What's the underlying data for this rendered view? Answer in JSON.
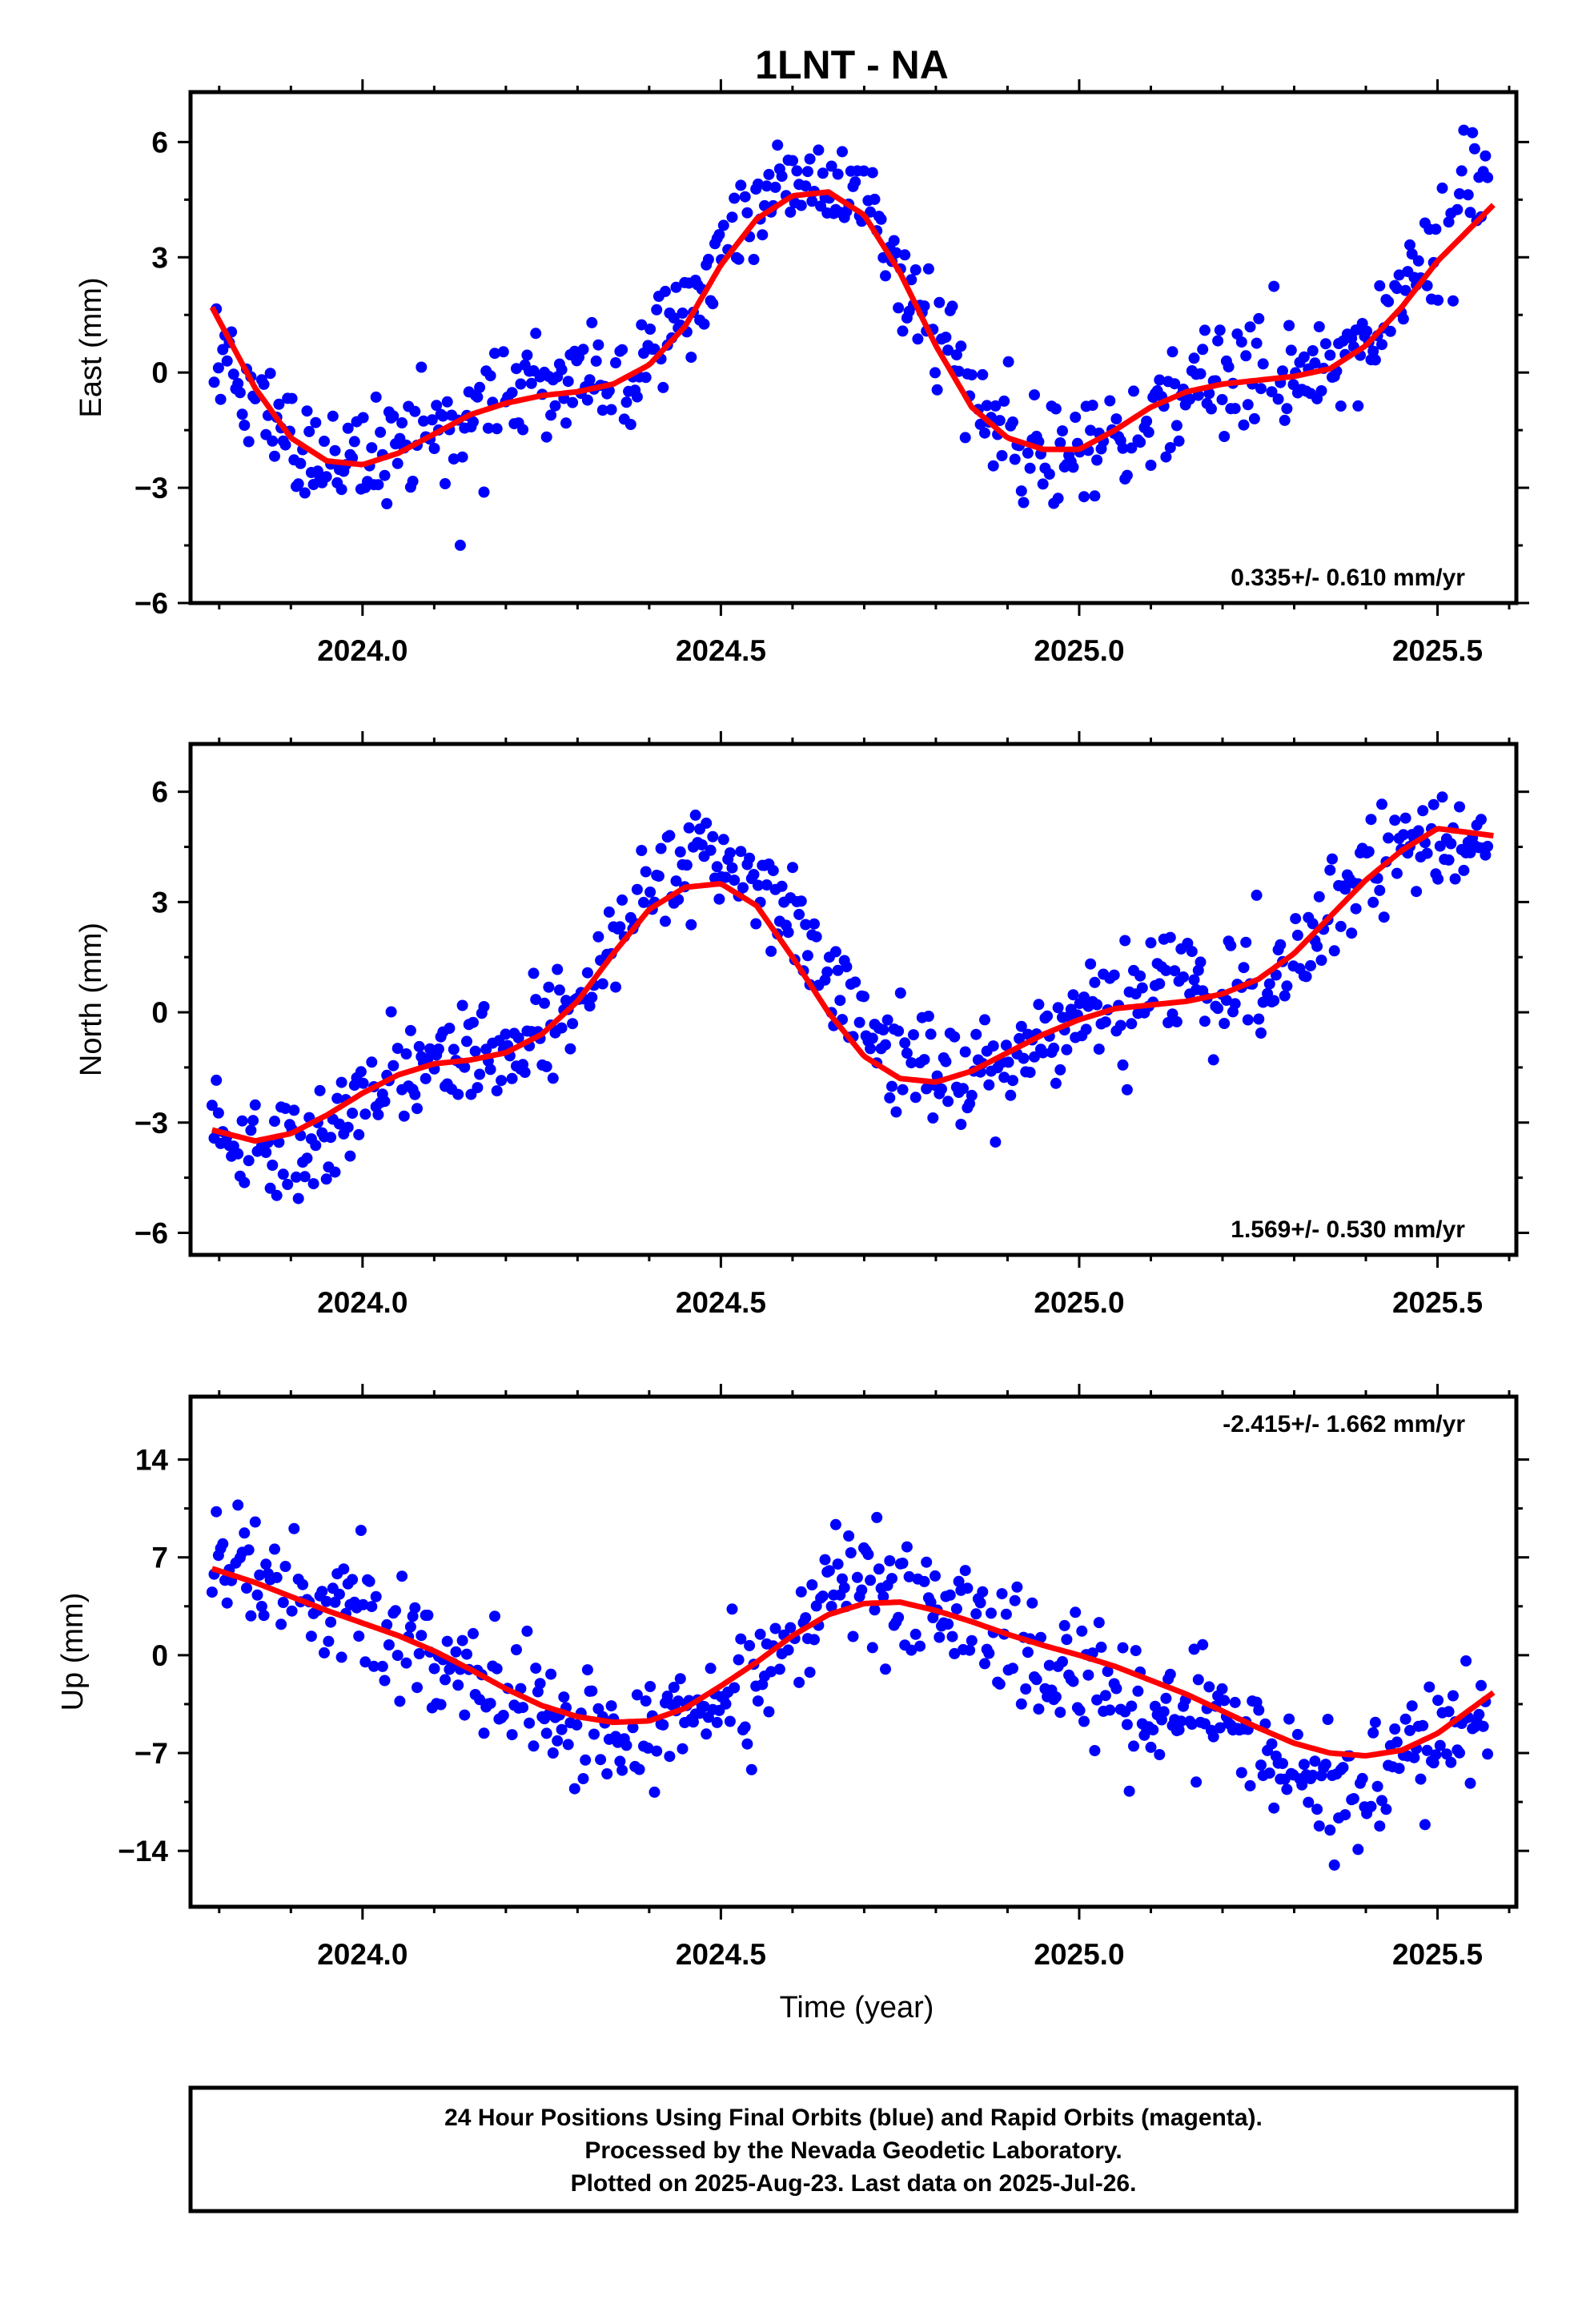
{
  "chart_data": [
    {
      "type": "scatter",
      "title": "1LNT - NA",
      "ylabel": "East (mm)",
      "xlabel": "",
      "xlim": [
        2023.76,
        2025.61
      ],
      "ylim": [
        -6.0,
        7.3
      ],
      "xticks": [
        2024.0,
        2024.5,
        2025.0,
        2025.5
      ],
      "xtick_labels": [
        "2024.0",
        "2024.5",
        "2025.0",
        "2025.5"
      ],
      "yticks": [
        6,
        3,
        0,
        -3,
        -6
      ],
      "ytick_labels": [
        "6",
        "3",
        "0",
        "−3",
        "−6"
      ],
      "rate_text": "0.335+/- 0.610 mm/yr",
      "rate_position": "bottom-right",
      "series": [
        {
          "name": "Final Orbits (blue)",
          "color": "#0000ff",
          "x": [
            2023.8,
            2023.85,
            2023.9,
            2023.95,
            2024.0,
            2024.05,
            2024.1,
            2024.15,
            2024.2,
            2024.25,
            2024.3,
            2024.35,
            2024.4,
            2024.45,
            2024.5,
            2024.55,
            2024.6,
            2024.65,
            2024.7,
            2024.75,
            2024.8,
            2024.85,
            2024.9,
            2024.95,
            2025.0,
            2025.05,
            2025.1,
            2025.15,
            2025.2,
            2025.25,
            2025.3,
            2025.35,
            2025.4,
            2025.45,
            2025.5,
            2025.55
          ],
          "y": [
            0.4,
            -1.0,
            -2.1,
            -2.3,
            -2.6,
            -2.0,
            -1.5,
            -0.9,
            -0.6,
            -0.4,
            -0.3,
            -0.2,
            0.4,
            1.5,
            3.2,
            4.2,
            5.1,
            4.8,
            4.3,
            2.8,
            0.9,
            -0.7,
            -1.6,
            -2.2,
            -2.1,
            -1.8,
            -1.2,
            -0.6,
            -0.3,
            -0.2,
            -0.1,
            0.2,
            0.8,
            2.2,
            3.4,
            5.0
          ]
        },
        {
          "name": "Rapid Orbits (magenta)",
          "color": "#ff00ff",
          "x": [],
          "y": []
        },
        {
          "name": "",
          "color": "#ff0000",
          "x": [
            2023.79,
            2023.85,
            2023.9,
            2023.95,
            2024.0,
            2024.05,
            2024.1,
            2024.15,
            2024.2,
            2024.25,
            2024.3,
            2024.35,
            2024.4,
            2024.45,
            2024.5,
            2024.55,
            2024.6,
            2024.65,
            2024.7,
            2024.75,
            2024.8,
            2024.85,
            2024.9,
            2024.95,
            2025.0,
            2025.05,
            2025.1,
            2025.15,
            2025.2,
            2025.25,
            2025.3,
            2025.35,
            2025.4,
            2025.45,
            2025.5,
            2025.58
          ],
          "y": [
            1.7,
            -0.4,
            -1.7,
            -2.3,
            -2.4,
            -2.1,
            -1.6,
            -1.1,
            -0.8,
            -0.6,
            -0.5,
            -0.3,
            0.2,
            1.2,
            2.8,
            4.0,
            4.6,
            4.7,
            4.1,
            2.6,
            0.7,
            -0.9,
            -1.7,
            -2.0,
            -2.0,
            -1.5,
            -0.9,
            -0.5,
            -0.3,
            -0.2,
            -0.1,
            0.1,
            0.7,
            1.7,
            2.9,
            4.4
          ]
        }
      ]
    },
    {
      "type": "scatter",
      "title": "",
      "ylabel": "North (mm)",
      "xlabel": "",
      "xlim": [
        2023.76,
        2025.61
      ],
      "ylim": [
        -6.6,
        7.3
      ],
      "xticks": [
        2024.0,
        2024.5,
        2025.0,
        2025.5
      ],
      "xtick_labels": [
        "2024.0",
        "2024.5",
        "2025.0",
        "2025.5"
      ],
      "yticks": [
        6,
        3,
        0,
        -3,
        -6
      ],
      "ytick_labels": [
        "6",
        "3",
        "0",
        "−3",
        "−6"
      ],
      "rate_text": "1.569+/- 0.530 mm/yr",
      "rate_position": "bottom-right",
      "series": [
        {
          "name": "Final Orbits (blue)",
          "color": "#0000ff",
          "x": [
            2023.8,
            2023.85,
            2023.9,
            2023.95,
            2024.0,
            2024.05,
            2024.1,
            2024.15,
            2024.2,
            2024.25,
            2024.3,
            2024.35,
            2024.4,
            2024.45,
            2024.5,
            2024.55,
            2024.6,
            2024.65,
            2024.7,
            2024.75,
            2024.8,
            2024.85,
            2024.9,
            2024.95,
            2025.0,
            2025.05,
            2025.1,
            2025.15,
            2025.2,
            2025.25,
            2025.3,
            2025.35,
            2025.4,
            2025.45,
            2025.5,
            2025.55
          ],
          "y": [
            -3.2,
            -3.6,
            -3.8,
            -3.4,
            -2.4,
            -1.7,
            -1.5,
            -1.3,
            -1.1,
            -0.7,
            0.4,
            1.8,
            3.5,
            4.0,
            4.3,
            3.7,
            2.6,
            1.0,
            -0.5,
            -1.0,
            -1.6,
            -2.0,
            -1.5,
            -0.8,
            -0.3,
            0.3,
            0.6,
            0.5,
            0.4,
            0.6,
            1.5,
            2.4,
            3.7,
            4.6,
            4.9,
            4.2
          ]
        },
        {
          "name": "Rapid Orbits (magenta)",
          "color": "#ff00ff",
          "x": [],
          "y": []
        },
        {
          "name": "",
          "color": "#ff0000",
          "x": [
            2023.79,
            2023.85,
            2023.9,
            2023.95,
            2024.0,
            2024.05,
            2024.1,
            2024.15,
            2024.2,
            2024.25,
            2024.3,
            2024.35,
            2024.4,
            2024.45,
            2024.5,
            2024.55,
            2024.6,
            2024.65,
            2024.7,
            2024.75,
            2024.8,
            2024.85,
            2024.9,
            2024.95,
            2025.0,
            2025.05,
            2025.1,
            2025.15,
            2025.2,
            2025.25,
            2025.3,
            2025.35,
            2025.4,
            2025.45,
            2025.5,
            2025.58
          ],
          "y": [
            -3.2,
            -3.5,
            -3.3,
            -2.8,
            -2.2,
            -1.7,
            -1.4,
            -1.3,
            -1.1,
            -0.6,
            0.3,
            1.6,
            2.8,
            3.4,
            3.5,
            2.9,
            1.5,
            0.0,
            -1.2,
            -1.8,
            -1.9,
            -1.6,
            -1.1,
            -0.6,
            -0.2,
            0.1,
            0.2,
            0.3,
            0.5,
            0.9,
            1.6,
            2.6,
            3.6,
            4.4,
            5.0,
            4.8
          ]
        }
      ]
    },
    {
      "type": "scatter",
      "title": "",
      "ylabel": "Up (mm)",
      "xlabel": "Time (year)",
      "xlim": [
        2023.76,
        2025.61
      ],
      "ylim": [
        -18.0,
        18.5
      ],
      "xticks": [
        2024.0,
        2024.5,
        2025.0,
        2025.5
      ],
      "xtick_labels": [
        "2024.0",
        "2024.5",
        "2025.0",
        "2025.5"
      ],
      "yticks": [
        14,
        7,
        0,
        -7,
        -14
      ],
      "ytick_labels": [
        "14",
        "7",
        "0",
        "−7",
        "−14"
      ],
      "rate_text": "-2.415+/- 1.662 mm/yr",
      "rate_position": "top-right",
      "series": [
        {
          "name": "Final Orbits (blue)",
          "color": "#0000ff",
          "x": [
            2023.8,
            2023.85,
            2023.9,
            2023.95,
            2024.0,
            2024.05,
            2024.1,
            2024.15,
            2024.2,
            2024.25,
            2024.3,
            2024.35,
            2024.4,
            2024.45,
            2024.5,
            2024.55,
            2024.6,
            2024.65,
            2024.7,
            2024.75,
            2024.8,
            2024.85,
            2024.9,
            2024.95,
            2025.0,
            2025.05,
            2025.1,
            2025.15,
            2025.2,
            2025.25,
            2025.3,
            2025.35,
            2025.4,
            2025.45,
            2025.5,
            2025.55
          ],
          "y": [
            7.5,
            5.6,
            4.8,
            3.4,
            2.6,
            1.3,
            -0.2,
            -1.5,
            -3.0,
            -4.2,
            -5.5,
            -6.1,
            -5.8,
            -4.4,
            -2.8,
            -0.6,
            1.4,
            4.2,
            5.0,
            4.1,
            3.2,
            2.0,
            0.8,
            -0.1,
            -0.8,
            -1.8,
            -3.1,
            -4.2,
            -5.4,
            -6.5,
            -8.6,
            -9.8,
            -9.0,
            -7.4,
            -6.2,
            -4.3
          ]
        },
        {
          "name": "Rapid Orbits (magenta)",
          "color": "#ff00ff",
          "x": [],
          "y": []
        },
        {
          "name": "",
          "color": "#ff0000",
          "x": [
            2023.79,
            2023.85,
            2023.9,
            2023.95,
            2024.0,
            2024.05,
            2024.1,
            2024.15,
            2024.2,
            2024.25,
            2024.3,
            2024.35,
            2024.4,
            2024.45,
            2024.5,
            2024.55,
            2024.6,
            2024.65,
            2024.7,
            2024.75,
            2024.8,
            2024.85,
            2024.9,
            2024.95,
            2025.0,
            2025.05,
            2025.1,
            2025.15,
            2025.2,
            2025.25,
            2025.3,
            2025.35,
            2025.4,
            2025.45,
            2025.5,
            2025.58
          ],
          "y": [
            6.2,
            5.2,
            4.2,
            3.2,
            2.3,
            1.4,
            0.3,
            -1.0,
            -2.4,
            -3.6,
            -4.4,
            -4.8,
            -4.7,
            -3.8,
            -2.2,
            -0.5,
            1.4,
            2.9,
            3.7,
            3.8,
            3.2,
            2.4,
            1.5,
            0.7,
            0.0,
            -0.8,
            -1.8,
            -2.8,
            -4.0,
            -5.2,
            -6.3,
            -7.0,
            -7.2,
            -6.8,
            -5.6,
            -2.6
          ]
        }
      ]
    }
  ],
  "footer": {
    "line1": "24 Hour Positions Using Final Orbits (blue) and Rapid Orbits (magenta).",
    "line2": "Processed by the Nevada Geodetic Laboratory.",
    "line3": "Plotted on 2025-Aug-23. Last data on 2025-Jul-26."
  }
}
